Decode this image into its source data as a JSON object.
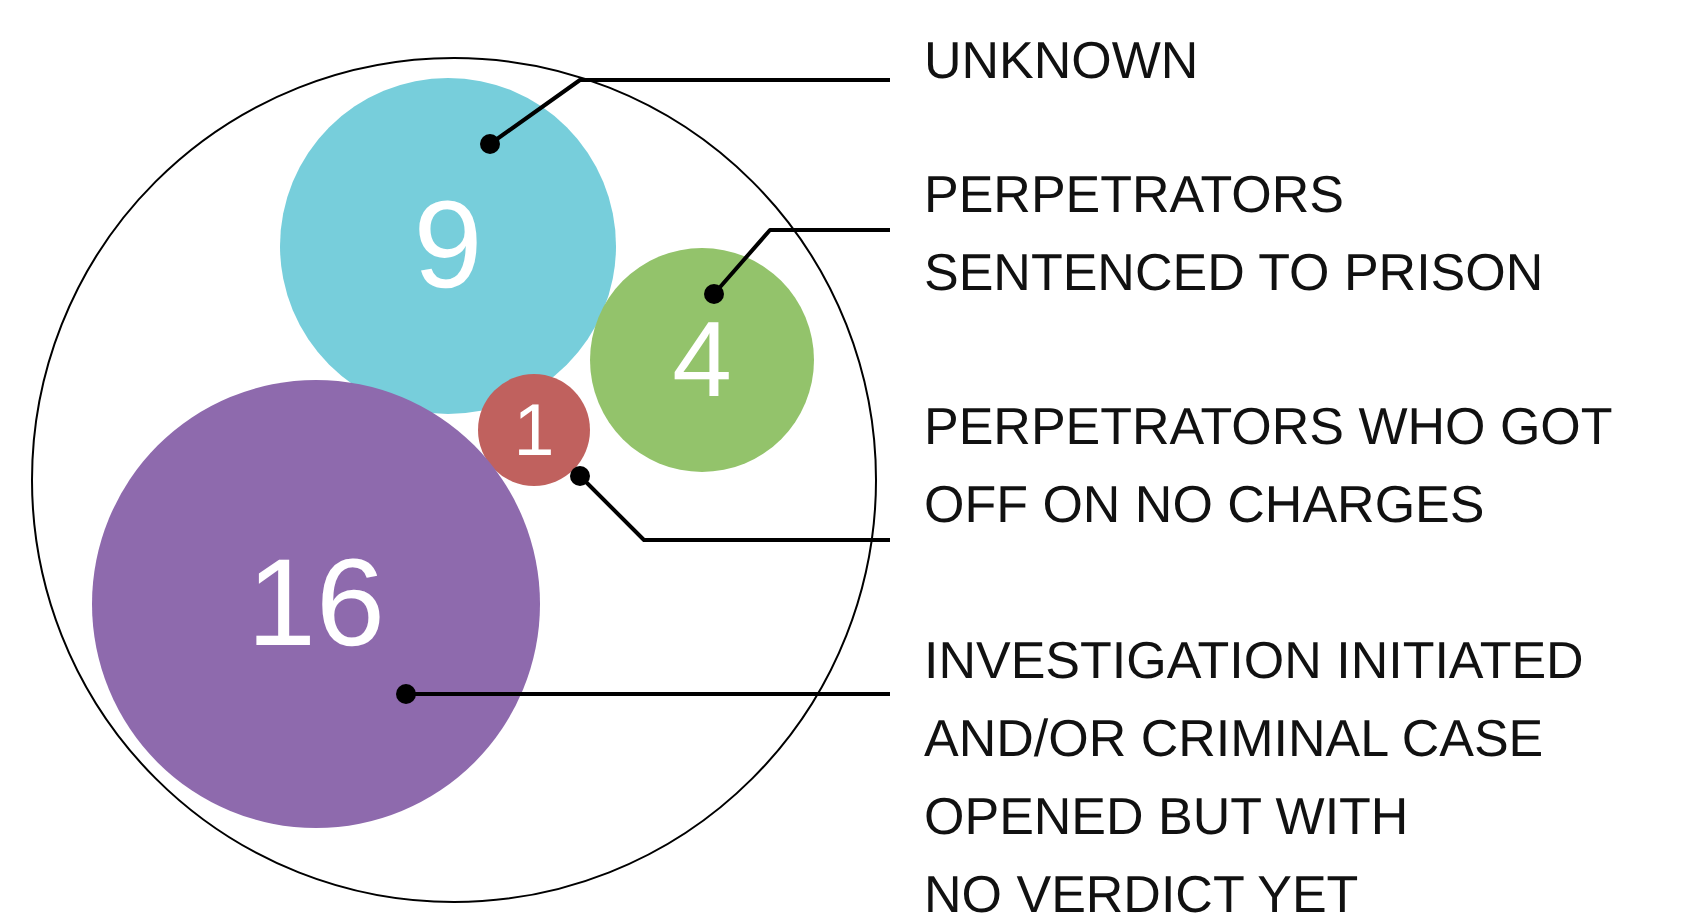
{
  "chart_data": {
    "type": "other",
    "categories": [
      "UNKNOWN",
      "PERPETRATORS\nSENTENCED TO PRISON",
      "PERPETRATORS WHO GOT\nOFF ON NO CHARGES",
      "INVESTIGATION INITIATED\nAND/OR CRIMINAL CASE\nOPENED BUT WITH\nNO VERDICT YET"
    ],
    "values": [
      9,
      4,
      1,
      16
    ],
    "data_labels": true,
    "colors": [
      "#77cedb",
      "#93c36b",
      "#c0615e",
      "#8e6aad"
    ]
  }
}
